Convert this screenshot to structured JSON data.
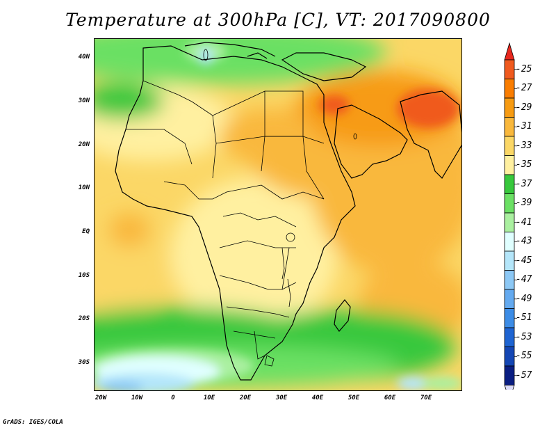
{
  "title": "Temperature at 300hPa [C], VT: 2017090800",
  "credit": "GrADS: IGES/COLA",
  "map": {
    "lat_ticks": [
      "40N",
      "30N",
      "20N",
      "10N",
      "EQ",
      "10S",
      "20S",
      "30S"
    ],
    "lon_ticks": [
      "20W",
      "10W",
      "0",
      "10E",
      "20E",
      "30E",
      "40E",
      "50E",
      "60E",
      "70E"
    ]
  },
  "colorbar": {
    "labels": [
      "-25",
      "-27",
      "-29",
      "-31",
      "-33",
      "-35",
      "-37",
      "-39",
      "-41",
      "-43",
      "-45",
      "-47",
      "-49",
      "-51",
      "-53",
      "-55",
      "-57"
    ],
    "colors": [
      "#f05a1e",
      "#fa7d00",
      "#f79b12",
      "#f9b83c",
      "#fbd766",
      "#fff0a0",
      "#37c83c",
      "#6be064",
      "#aaf0a0",
      "#e0ffff",
      "#b4e6fa",
      "#8cc8f5",
      "#64aaf0",
      "#3c8ce6",
      "#1e64d2",
      "#1446b4",
      "#0a1e82"
    ],
    "top_arrow_color": "#e8281e",
    "bottom_arrow_color": "#dcdcfa"
  }
}
